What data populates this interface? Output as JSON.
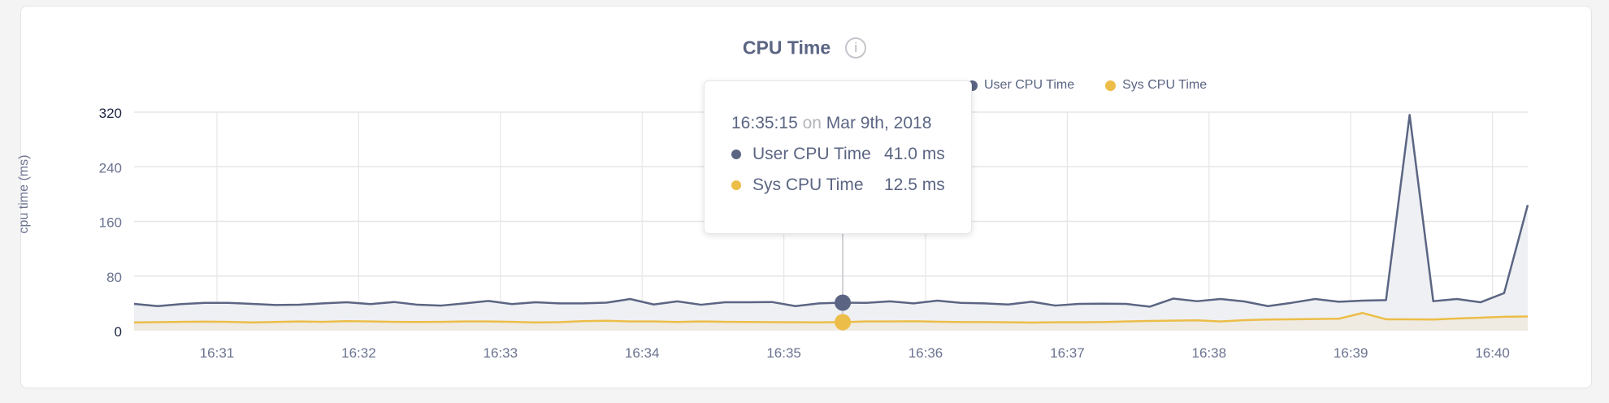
{
  "colors": {
    "user": "#5b6583",
    "sys": "#ecbd48",
    "user_fill": "#eef0f3",
    "sys_fill": "#efebe2",
    "grid": "#e6e6e8"
  },
  "title": "CPU Time",
  "info_icon": "info-circle-icon",
  "chart_data": {
    "type": "area",
    "title": "CPU Time",
    "ylabel": "cpu time (ms)",
    "xlabel": "",
    "ylim": [
      0,
      320
    ],
    "yticks": [
      "0",
      "80",
      "160",
      "240",
      "320"
    ],
    "xticks": [
      "16:31",
      "16:32",
      "16:33",
      "16:34",
      "16:35",
      "16:36",
      "16:37",
      "16:38",
      "16:39",
      "16:40"
    ],
    "x_start": "16:30:15",
    "x_step_seconds": 10,
    "grid": true,
    "legend_position": "top-right",
    "series": [
      {
        "name": "User CPU Time",
        "values": [
          39.2,
          36,
          39,
          40.8,
          40.8,
          39.2,
          37.6,
          38,
          40,
          41.6,
          39,
          42,
          38,
          36.8,
          40,
          43.6,
          39,
          41.6,
          40,
          40,
          41,
          46.4,
          38.4,
          43,
          38,
          41.6,
          41.6,
          42,
          36,
          40,
          41,
          40.8,
          43,
          40,
          44,
          40.8,
          40,
          38.4,
          42.4,
          36.8,
          39.2,
          39.6,
          39.2,
          35.2,
          47,
          43.2,
          46.4,
          42.8,
          36,
          40.8,
          46.4,
          42.4,
          44,
          44.8,
          316,
          43.2,
          46.4,
          41.6,
          55,
          184
        ]
      },
      {
        "name": "Sys CPU Time",
        "values": [
          12,
          12.5,
          13,
          13.2,
          13,
          12,
          12.8,
          13.5,
          13,
          14,
          13.5,
          13,
          12.8,
          13,
          13.5,
          13.5,
          13,
          12,
          12.5,
          14,
          14.5,
          13.5,
          13.5,
          12.8,
          13.5,
          13,
          12.8,
          12.5,
          12.3,
          12.2,
          12.5,
          13.5,
          13.5,
          13.9,
          13.1,
          12.7,
          12.7,
          12.3,
          11.9,
          12.3,
          12.3,
          12.7,
          13.5,
          14.3,
          14.7,
          15.1,
          13.5,
          15.5,
          16.3,
          16.7,
          17.1,
          17.5,
          25.9,
          16.7,
          16.7,
          16.3,
          17.9,
          19.1,
          20.3,
          20.8
        ]
      }
    ]
  },
  "tooltip": {
    "time": "16:35:15",
    "on": "on",
    "date": "Mar 9th, 2018",
    "hover_index": 30,
    "rows": [
      {
        "label": "User CPU Time",
        "value": "41.0 ms"
      },
      {
        "label": "Sys CPU Time",
        "value": "12.5 ms"
      }
    ]
  }
}
